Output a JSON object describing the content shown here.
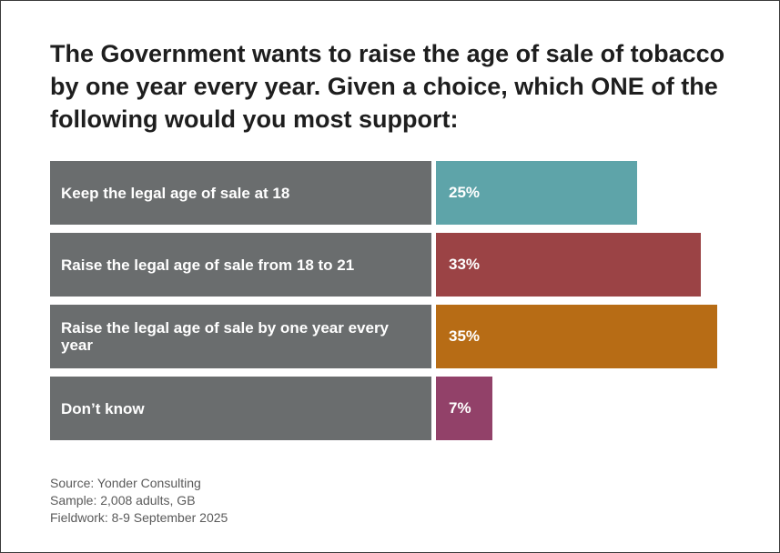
{
  "chart_data": {
    "type": "bar",
    "orientation": "horizontal",
    "title": "The Government wants to raise the age of sale of tobacco by one year every year. Given a choice, which ONE of the following would you most support:",
    "categories": [
      "Keep the legal age of sale at 18",
      "Raise the legal age of sale from 18 to 21",
      "Raise the legal age of sale by one year every year",
      "Don’t know"
    ],
    "values": [
      25,
      33,
      35,
      7
    ],
    "value_labels": [
      "25%",
      "33%",
      "35%",
      "7%"
    ],
    "colors": [
      "#5ea4a9",
      "#9b4345",
      "#b76c15",
      "#924169"
    ],
    "category_bg_color": "#6a6d6e",
    "unit": "%",
    "xlim": [
      0,
      35
    ]
  },
  "footer": {
    "source": "Source: Yonder Consulting",
    "sample": "Sample: 2,008 adults, GB",
    "fieldwork": "Fieldwork: 8-9 September 2025"
  }
}
